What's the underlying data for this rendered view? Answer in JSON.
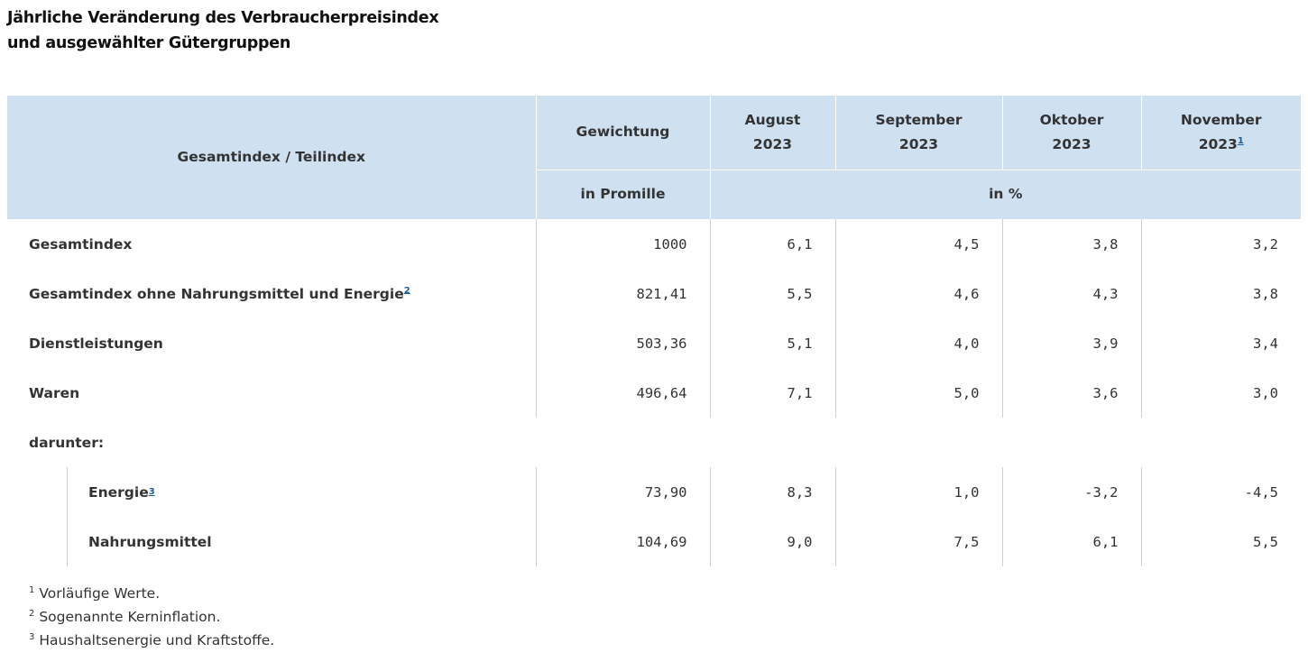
{
  "title": {
    "line1": "Jährliche Veränderung des Verbraucherpreisindex",
    "line2": "und ausgewählter Gütergruppen"
  },
  "header": {
    "col_label": "Gesamtindex / Teilindex",
    "weight_label": "Gewichtung",
    "weight_unit": "in Promille",
    "months": [
      {
        "name": "August",
        "year": "2023",
        "footnote": ""
      },
      {
        "name": "September",
        "year": "2023",
        "footnote": ""
      },
      {
        "name": "Oktober",
        "year": "2023",
        "footnote": ""
      },
      {
        "name": "November",
        "year": "2023",
        "footnote": "1"
      }
    ],
    "percent_unit": "in %"
  },
  "rows": [
    {
      "label": "Gesamtindex",
      "footnote": "",
      "weight": "1000",
      "values": [
        "6,1",
        "4,5",
        "3,8",
        "3,2"
      ]
    },
    {
      "label": "Gesamtindex ohne Nahrungsmittel und Energie",
      "footnote": "2",
      "weight": "821,41",
      "values": [
        "5,5",
        "4,6",
        "4,3",
        "3,8"
      ]
    },
    {
      "label": "Dienstleistungen",
      "footnote": "",
      "weight": "503,36",
      "values": [
        "5,1",
        "4,0",
        "3,9",
        "3,4"
      ]
    },
    {
      "label": "Waren",
      "footnote": "",
      "weight": "496,64",
      "values": [
        "7,1",
        "5,0",
        "3,6",
        "3,0"
      ]
    }
  ],
  "darunter_label": "darunter:",
  "sub_rows": [
    {
      "label": "Energie",
      "footnote": "3",
      "weight": "73,90",
      "values": [
        "8,3",
        "1,0",
        "-3,2",
        "-4,5"
      ]
    },
    {
      "label": "Nahrungsmittel",
      "footnote": "",
      "weight": "104,69",
      "values": [
        "9,0",
        "7,5",
        "6,1",
        "5,5"
      ]
    }
  ],
  "footnotes": [
    {
      "num": "1",
      "text": "Vorläufige Werte."
    },
    {
      "num": "2",
      "text": "Sogenannte Kerninflation."
    },
    {
      "num": "3",
      "text": "Haushaltsenergie und Kraftstoffe."
    }
  ]
}
